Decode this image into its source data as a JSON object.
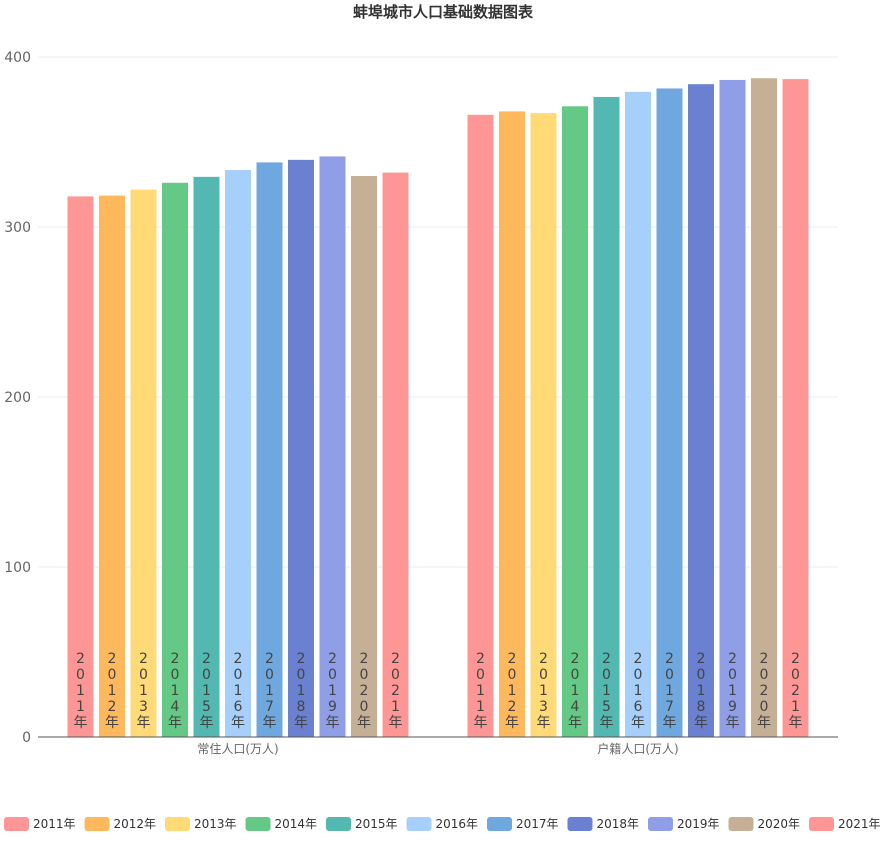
{
  "chart_data": {
    "type": "bar",
    "title": "蚌埠城市人口基础数据图表",
    "categories": [
      "常住人口(万人)",
      "户籍人口(万人)"
    ],
    "ylim": [
      0,
      400
    ],
    "yticks": [
      0,
      100,
      200,
      300,
      400
    ],
    "grid": true,
    "legend_position": "bottom",
    "series": [
      {
        "name": "2011年",
        "color": "#ff9696",
        "values": [
          318,
          366
        ]
      },
      {
        "name": "2012年",
        "color": "#ffb95c",
        "values": [
          318.5,
          368
        ]
      },
      {
        "name": "2013年",
        "color": "#ffda76",
        "values": [
          322,
          367
        ]
      },
      {
        "name": "2014年",
        "color": "#64c985",
        "values": [
          326,
          371
        ]
      },
      {
        "name": "2015年",
        "color": "#52b8b0",
        "values": [
          329.5,
          376.5
        ]
      },
      {
        "name": "2016年",
        "color": "#a6d0fb",
        "values": [
          333.5,
          379.5
        ]
      },
      {
        "name": "2017年",
        "color": "#6fa7df",
        "values": [
          338,
          381.5
        ]
      },
      {
        "name": "2018年",
        "color": "#6a80d1",
        "values": [
          339.5,
          384
        ]
      },
      {
        "name": "2019年",
        "color": "#8f9ee6",
        "values": [
          341.5,
          386.5
        ]
      },
      {
        "name": "2020年",
        "color": "#c5b096",
        "values": [
          330,
          387.5
        ]
      },
      {
        "name": "2021年",
        "color": "#ff9696",
        "values": [
          332,
          387
        ]
      }
    ]
  }
}
